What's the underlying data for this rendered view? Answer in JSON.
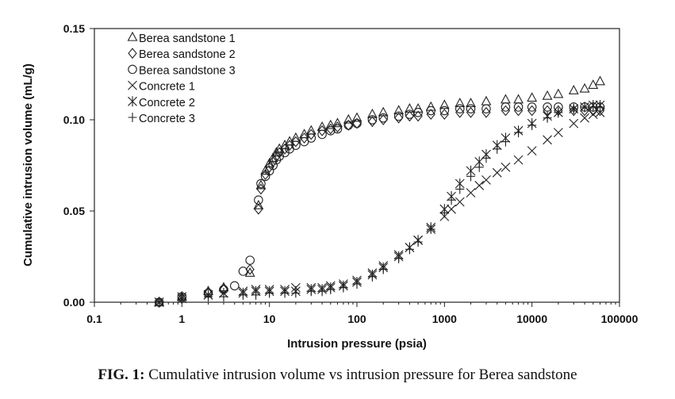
{
  "caption": {
    "label": "FIG. 1:",
    "text": "Cumulative intrusion volume vs intrusion pressure for Berea sandstone"
  },
  "chart_data": {
    "type": "scatter",
    "xlabel": "Intrusion pressure (psia)",
    "ylabel": "Cumulative intrusion volume (mL/g)",
    "xscale": "log",
    "xlim": [
      0.1,
      100000
    ],
    "ylim": [
      0,
      0.15
    ],
    "xticks": [
      "0.1",
      "1",
      "10",
      "100",
      "1000",
      "10000",
      "100000"
    ],
    "yticks": [
      "0.00",
      "0.05",
      "0.10",
      "0.15"
    ],
    "grid": false,
    "legend_position": "top-left",
    "series": [
      {
        "name": "Berea sandstone 1",
        "marker": "triangle",
        "x": [
          0.55,
          1,
          2,
          3,
          6,
          7.5,
          8,
          9,
          10,
          11,
          12,
          13,
          15,
          17,
          20,
          25,
          30,
          40,
          50,
          60,
          80,
          100,
          150,
          200,
          300,
          400,
          500,
          700,
          1000,
          1500,
          2000,
          3000,
          5000,
          7000,
          10000,
          15000,
          20000,
          30000,
          40000,
          50000,
          60000
        ],
        "y": [
          0.0,
          0.003,
          0.006,
          0.008,
          0.016,
          0.053,
          0.064,
          0.072,
          0.076,
          0.079,
          0.082,
          0.084,
          0.086,
          0.088,
          0.09,
          0.092,
          0.094,
          0.096,
          0.097,
          0.098,
          0.1,
          0.101,
          0.103,
          0.104,
          0.105,
          0.106,
          0.106,
          0.107,
          0.108,
          0.109,
          0.109,
          0.11,
          0.111,
          0.111,
          0.112,
          0.113,
          0.114,
          0.116,
          0.117,
          0.119,
          0.121
        ]
      },
      {
        "name": "Berea sandstone 2",
        "marker": "diamond",
        "x": [
          0.55,
          1,
          2,
          3,
          6,
          7.5,
          8,
          9,
          10,
          11,
          12,
          13,
          15,
          17,
          20,
          25,
          30,
          40,
          50,
          60,
          80,
          100,
          150,
          200,
          300,
          400,
          500,
          700,
          1000,
          1500,
          2000,
          3000,
          5000,
          7000,
          10000,
          15000,
          20000,
          30000,
          40000,
          50000,
          60000
        ],
        "y": [
          0.0,
          0.002,
          0.005,
          0.007,
          0.018,
          0.051,
          0.062,
          0.07,
          0.074,
          0.077,
          0.08,
          0.082,
          0.084,
          0.086,
          0.088,
          0.09,
          0.092,
          0.094,
          0.095,
          0.096,
          0.097,
          0.098,
          0.099,
          0.1,
          0.101,
          0.102,
          0.102,
          0.103,
          0.103,
          0.104,
          0.104,
          0.104,
          0.105,
          0.105,
          0.105,
          0.105,
          0.105,
          0.105,
          0.105,
          0.105,
          0.105
        ]
      },
      {
        "name": "Berea sandstone 3",
        "marker": "circle",
        "x": [
          0.55,
          1,
          2,
          3,
          4,
          5,
          6,
          7.5,
          8,
          9,
          10,
          11,
          12,
          13,
          15,
          17,
          20,
          25,
          30,
          40,
          50,
          60,
          80,
          100,
          150,
          200,
          300,
          400,
          500,
          700,
          1000,
          1500,
          2000,
          3000,
          5000,
          7000,
          10000,
          15000,
          20000,
          30000,
          40000,
          50000,
          60000
        ],
        "y": [
          0.0,
          0.003,
          0.005,
          0.007,
          0.009,
          0.017,
          0.023,
          0.056,
          0.065,
          0.069,
          0.072,
          0.075,
          0.078,
          0.08,
          0.082,
          0.084,
          0.086,
          0.088,
          0.09,
          0.092,
          0.094,
          0.095,
          0.097,
          0.098,
          0.1,
          0.101,
          0.102,
          0.103,
          0.104,
          0.105,
          0.105,
          0.106,
          0.106,
          0.106,
          0.107,
          0.107,
          0.107,
          0.107,
          0.107,
          0.107,
          0.107,
          0.107,
          0.107
        ]
      },
      {
        "name": "Concrete 1",
        "marker": "x",
        "x": [
          0.55,
          1,
          2,
          3,
          5,
          7,
          10,
          15,
          20,
          30,
          40,
          50,
          70,
          100,
          150,
          200,
          300,
          400,
          500,
          700,
          1000,
          1200,
          1500,
          2000,
          2500,
          3000,
          4000,
          5000,
          7000,
          10000,
          15000,
          20000,
          30000,
          40000,
          50000,
          60000
        ],
        "y": [
          0.0,
          0.002,
          0.004,
          0.005,
          0.006,
          0.007,
          0.007,
          0.007,
          0.008,
          0.008,
          0.008,
          0.009,
          0.01,
          0.012,
          0.016,
          0.02,
          0.026,
          0.03,
          0.034,
          0.04,
          0.047,
          0.051,
          0.055,
          0.06,
          0.064,
          0.067,
          0.071,
          0.074,
          0.078,
          0.083,
          0.089,
          0.093,
          0.098,
          0.101,
          0.103,
          0.104
        ]
      },
      {
        "name": "Concrete 2",
        "marker": "asterisk",
        "x": [
          0.55,
          1,
          2,
          3,
          5,
          7,
          10,
          15,
          20,
          30,
          40,
          50,
          70,
          100,
          150,
          200,
          300,
          400,
          500,
          700,
          1000,
          1200,
          1500,
          2000,
          2500,
          3000,
          4000,
          5000,
          7000,
          10000,
          15000,
          20000,
          30000,
          40000,
          50000,
          60000
        ],
        "y": [
          0.0,
          0.003,
          0.004,
          0.005,
          0.005,
          0.006,
          0.006,
          0.006,
          0.006,
          0.007,
          0.007,
          0.008,
          0.009,
          0.011,
          0.015,
          0.019,
          0.025,
          0.03,
          0.034,
          0.041,
          0.051,
          0.058,
          0.065,
          0.072,
          0.077,
          0.081,
          0.086,
          0.09,
          0.094,
          0.098,
          0.102,
          0.104,
          0.106,
          0.107,
          0.108,
          0.108
        ]
      },
      {
        "name": "Concrete 3",
        "marker": "plus",
        "x": [
          0.55,
          1,
          2,
          3,
          5,
          7,
          10,
          15,
          20,
          30,
          40,
          50,
          70,
          100,
          150,
          200,
          300,
          400,
          500,
          700,
          1000,
          1200,
          1500,
          2000,
          2500,
          3000,
          4000,
          5000,
          7000,
          10000,
          15000,
          20000,
          30000,
          40000,
          50000,
          60000
        ],
        "y": [
          0.0,
          0.002,
          0.003,
          0.003,
          0.004,
          0.004,
          0.005,
          0.005,
          0.005,
          0.006,
          0.006,
          0.007,
          0.008,
          0.01,
          0.014,
          0.018,
          0.024,
          0.029,
          0.033,
          0.04,
          0.049,
          0.056,
          0.062,
          0.069,
          0.074,
          0.079,
          0.084,
          0.088,
          0.093,
          0.097,
          0.101,
          0.104,
          0.106,
          0.107,
          0.107,
          0.107
        ]
      }
    ]
  }
}
